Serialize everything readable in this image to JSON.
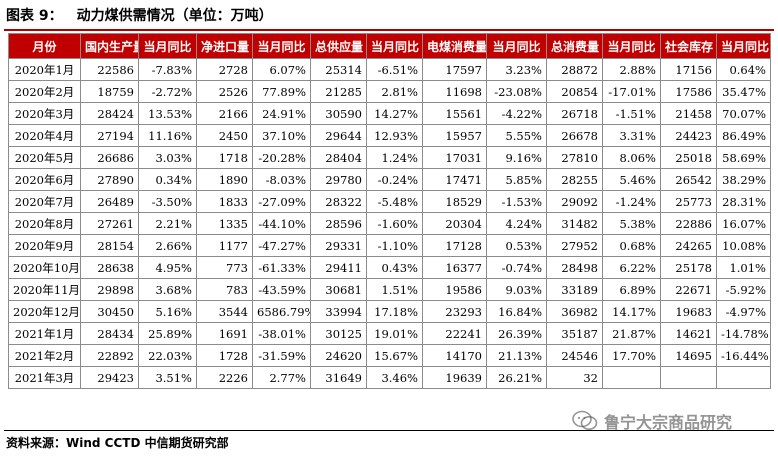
{
  "title": {
    "label": "图表 9：",
    "text": "动力煤供需情况（单位：万吨）"
  },
  "table": {
    "headers": [
      "月份",
      "国内生产量",
      "当月同比",
      "净进口量",
      "当月同比",
      "总供应量",
      "当月同比",
      "电煤消费量",
      "当月同比",
      "总消费量",
      "当月同比",
      "社会库存",
      "当月同比"
    ],
    "rows": [
      [
        "2020年1月",
        "22586",
        "-7.83%",
        "2728",
        "6.07%",
        "25314",
        "-6.51%",
        "17597",
        "3.23%",
        "28872",
        "2.88%",
        "17156",
        "0.64%"
      ],
      [
        "2020年2月",
        "18759",
        "-2.72%",
        "2526",
        "77.89%",
        "21285",
        "2.81%",
        "11698",
        "-23.08%",
        "20854",
        "-17.01%",
        "17586",
        "35.47%"
      ],
      [
        "2020年3月",
        "28424",
        "13.53%",
        "2166",
        "24.91%",
        "30590",
        "14.27%",
        "15561",
        "-4.22%",
        "26718",
        "-1.51%",
        "21458",
        "70.07%"
      ],
      [
        "2020年4月",
        "27194",
        "11.16%",
        "2450",
        "37.10%",
        "29644",
        "12.93%",
        "15957",
        "5.55%",
        "26678",
        "3.31%",
        "24423",
        "86.49%"
      ],
      [
        "2020年5月",
        "26686",
        "3.03%",
        "1718",
        "-20.28%",
        "28404",
        "1.24%",
        "17031",
        "9.16%",
        "27810",
        "8.06%",
        "25018",
        "58.69%"
      ],
      [
        "2020年6月",
        "27890",
        "0.34%",
        "1890",
        "-8.03%",
        "29780",
        "-0.24%",
        "17471",
        "5.85%",
        "28255",
        "5.46%",
        "26542",
        "38.29%"
      ],
      [
        "2020年7月",
        "26489",
        "-3.50%",
        "1833",
        "-27.09%",
        "28322",
        "-5.48%",
        "18529",
        "-1.53%",
        "29092",
        "-1.24%",
        "25773",
        "28.31%"
      ],
      [
        "2020年8月",
        "27261",
        "2.21%",
        "1335",
        "-44.10%",
        "28596",
        "-1.60%",
        "20304",
        "4.24%",
        "31482",
        "5.38%",
        "22886",
        "16.07%"
      ],
      [
        "2020年9月",
        "28154",
        "2.66%",
        "1177",
        "-47.27%",
        "29331",
        "-1.10%",
        "17128",
        "0.53%",
        "27952",
        "0.68%",
        "24265",
        "10.08%"
      ],
      [
        "2020年10月",
        "28638",
        "4.95%",
        "773",
        "-61.33%",
        "29411",
        "0.43%",
        "16377",
        "-0.74%",
        "28498",
        "6.22%",
        "25178",
        "1.01%"
      ],
      [
        "2020年11月",
        "29898",
        "3.68%",
        "783",
        "-43.59%",
        "30681",
        "1.51%",
        "19586",
        "9.03%",
        "33189",
        "6.89%",
        "22671",
        "-5.92%"
      ],
      [
        "2020年12月",
        "30450",
        "5.16%",
        "3544",
        "6586.79%",
        "33994",
        "17.18%",
        "23293",
        "16.84%",
        "36982",
        "14.17%",
        "19683",
        "-4.97%"
      ],
      [
        "2021年1月",
        "28434",
        "25.89%",
        "1691",
        "-38.01%",
        "30125",
        "19.01%",
        "22241",
        "26.39%",
        "35187",
        "21.87%",
        "14621",
        "-14.78%"
      ],
      [
        "2021年2月",
        "22892",
        "22.03%",
        "1728",
        "-31.59%",
        "24620",
        "15.67%",
        "14170",
        "21.13%",
        "24546",
        "17.70%",
        "14695",
        "-16.44%"
      ],
      [
        "2021年3月",
        "29423",
        "3.51%",
        "2226",
        "2.77%",
        "31649",
        "3.46%",
        "19639",
        "26.21%",
        "32",
        "",
        "",
        ""
      ]
    ]
  },
  "source": {
    "label": "资料来源：",
    "text": "Wind CCTD 中信期货研究部"
  },
  "watermark": {
    "icon": "wechat-icon",
    "text": "鲁宁大宗商品研究"
  }
}
